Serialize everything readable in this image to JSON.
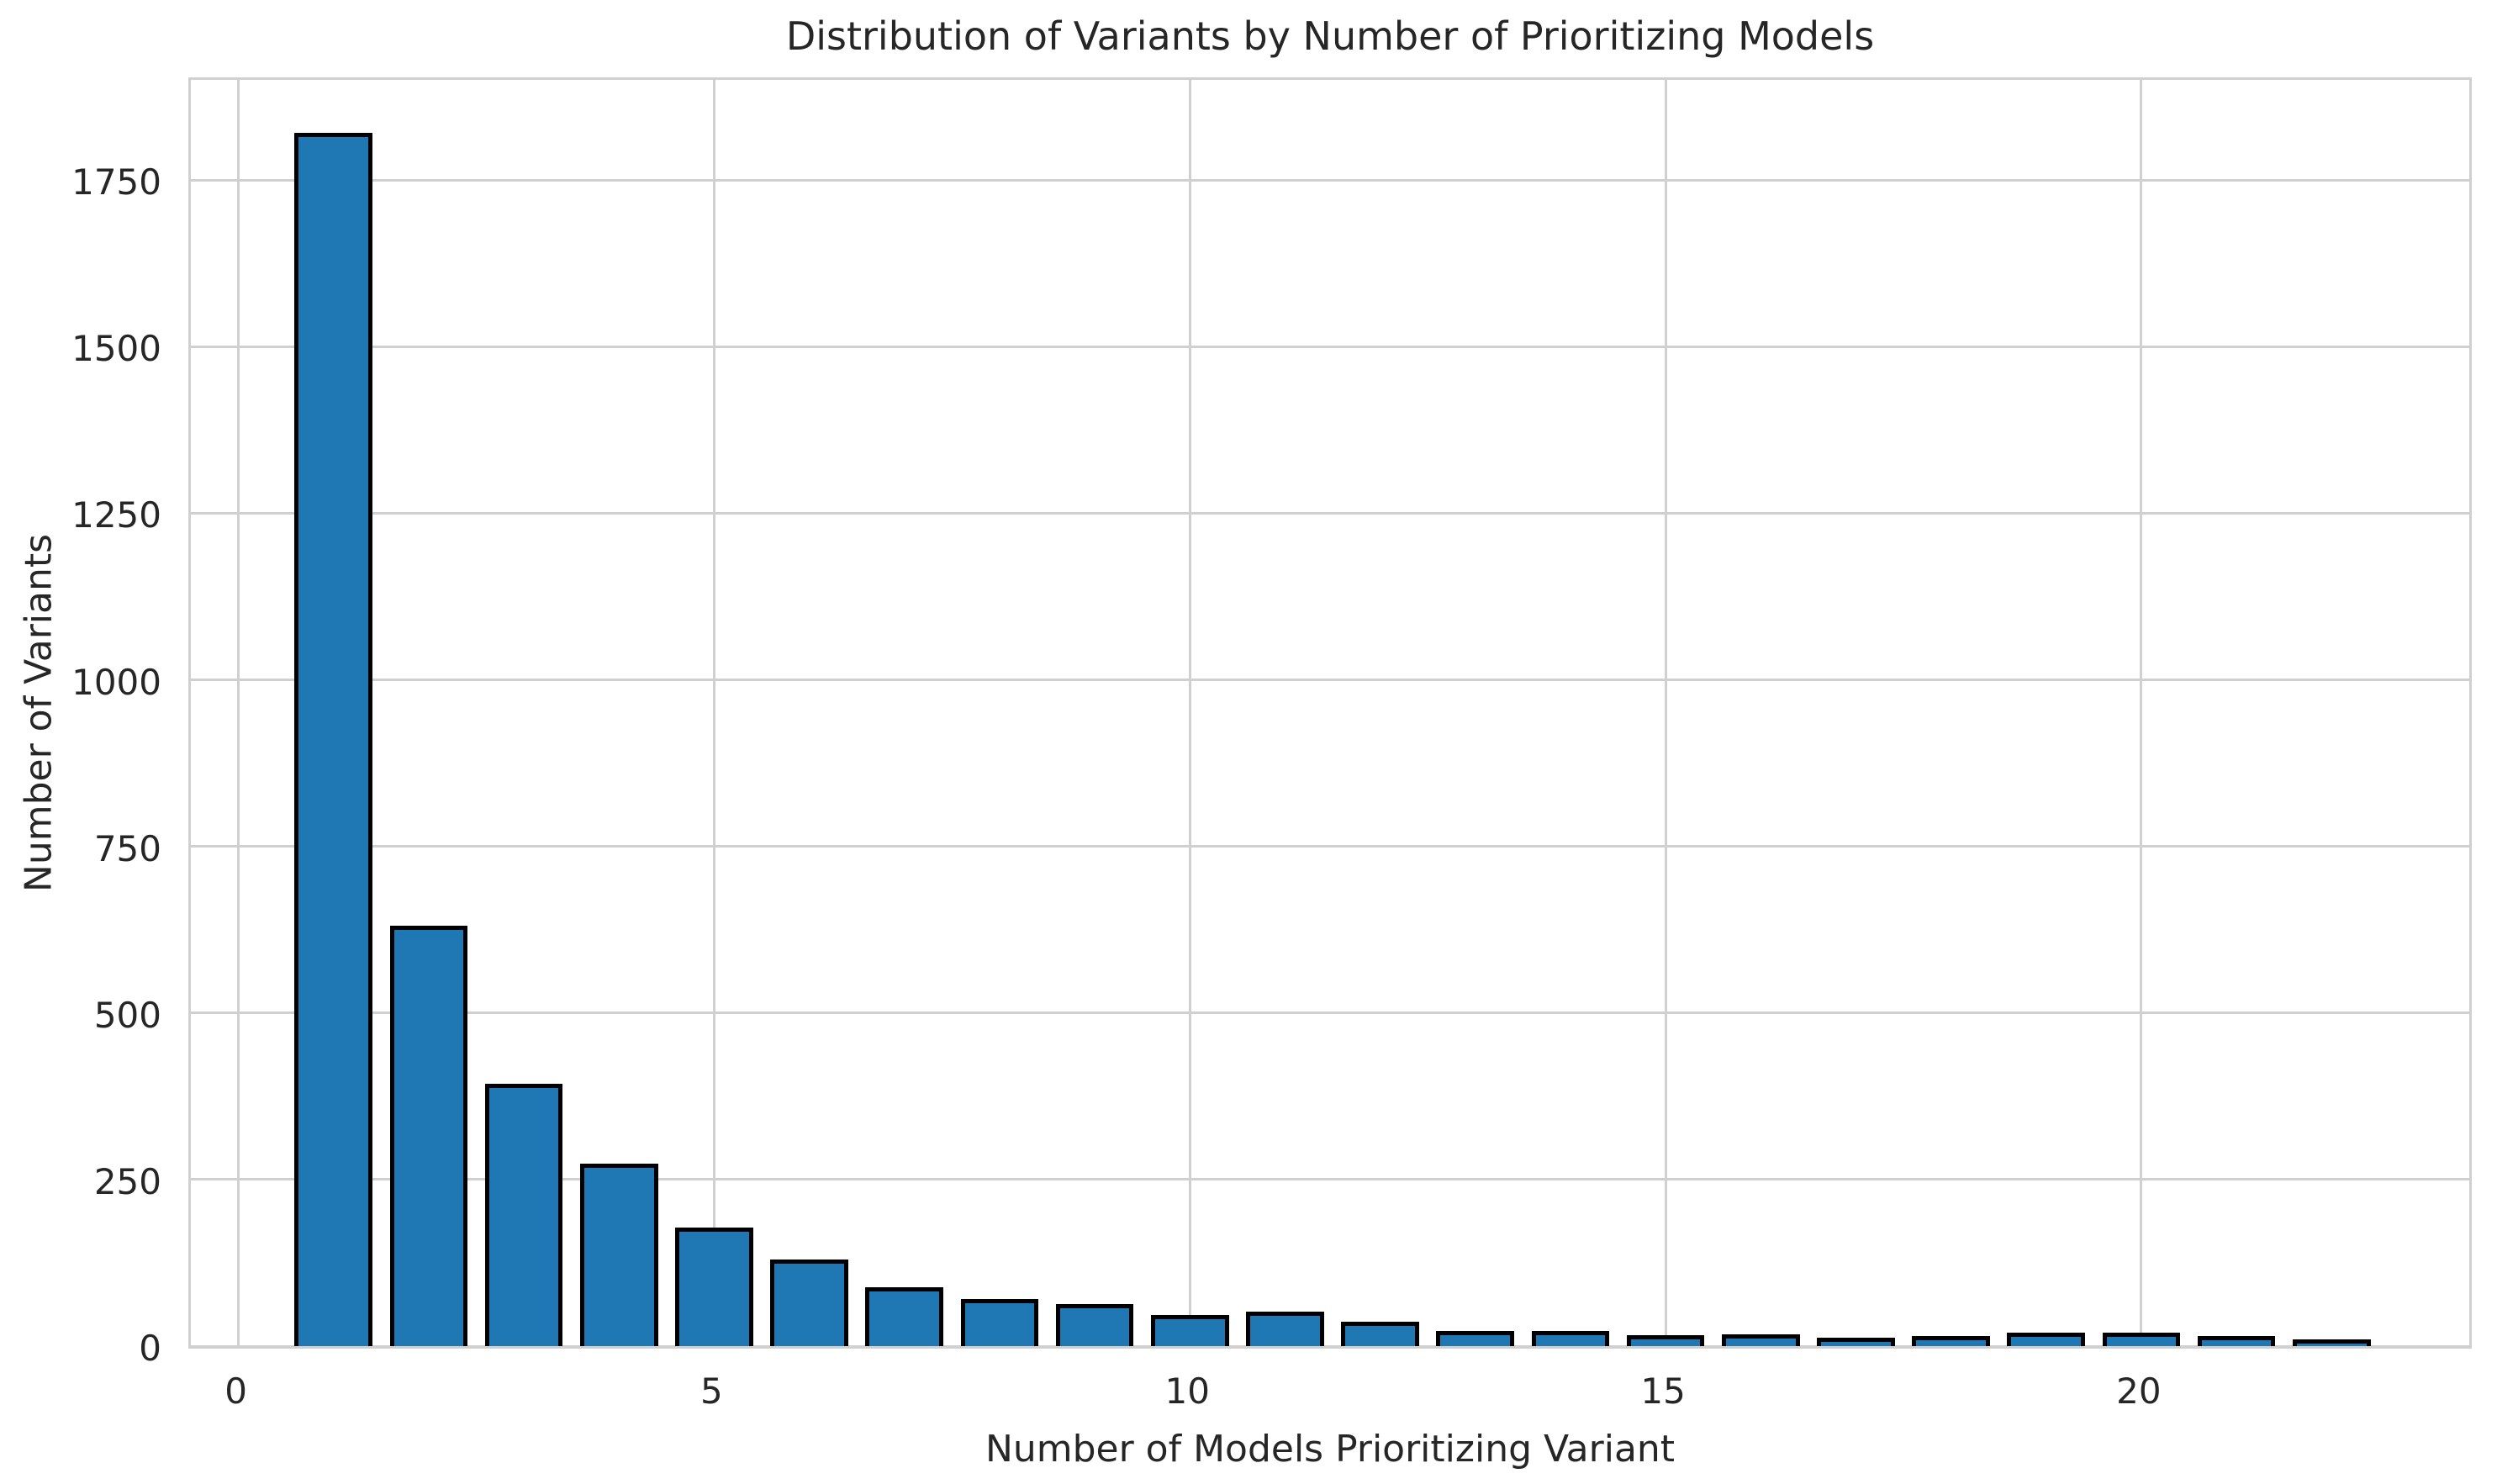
{
  "chart_data": {
    "type": "bar",
    "title": "Distribution of Variants by Number of Prioritizing Models",
    "xlabel": "Number of Models Prioritizing Variant",
    "ylabel": "Number of Variants",
    "x": [
      1,
      2,
      3,
      4,
      5,
      6,
      7,
      8,
      9,
      10,
      11,
      12,
      13,
      14,
      15,
      16,
      17,
      18,
      19,
      20,
      21,
      22
    ],
    "values": [
      1818,
      628,
      390,
      271,
      175,
      127,
      85,
      68,
      60,
      44,
      49,
      34,
      20,
      19,
      13,
      14,
      9,
      12,
      17,
      17,
      12,
      7
    ],
    "x_ticks": [
      0,
      5,
      10,
      15,
      20
    ],
    "y_ticks": [
      0,
      250,
      500,
      750,
      1000,
      1250,
      1500,
      1750
    ],
    "xlim": [
      -0.5,
      23.5
    ],
    "ylim": [
      0,
      1908
    ],
    "bar_width": 0.82,
    "bar_color": "#1f77b4",
    "bar_edge_color": "#000000",
    "grid": true,
    "grid_color": "#d0d0d0",
    "text_color": "#262626",
    "legend": "none"
  }
}
